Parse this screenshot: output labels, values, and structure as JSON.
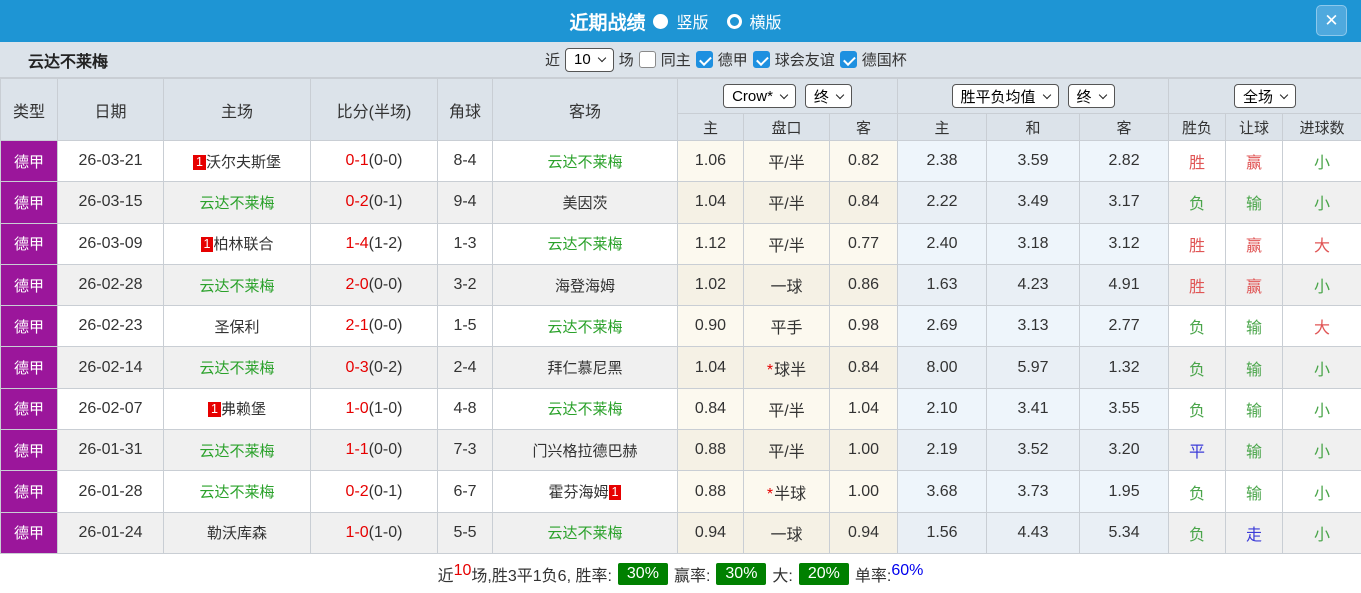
{
  "colors": {
    "red": "#E05555",
    "green": "#4AA54A",
    "blue": "#3B3BD8",
    "team_green": "#2AA12A",
    "score_red": "#E60000",
    "league_purple": "#9B169B",
    "titlebar_blue": "#1E95D4",
    "badge_green": "#008000"
  },
  "titlebar": {
    "title": "近期战绩",
    "vertical_label": "竖版",
    "vertical_selected": true,
    "horizontal_label": "横版",
    "horizontal_selected": false,
    "close_glyph": "✕"
  },
  "filterbar": {
    "team": "云达不莱梅",
    "recent_label": "近",
    "recent_value": "10",
    "matches_label": "场",
    "same_home": {
      "label": "同主",
      "checked": false
    },
    "leagues": [
      {
        "label": "德甲",
        "checked": true
      },
      {
        "label": "球会友谊",
        "checked": true
      },
      {
        "label": "德国杯",
        "checked": true
      }
    ]
  },
  "table": {
    "col_headers": [
      "类型",
      "日期",
      "主场",
      "比分(半场)",
      "角球",
      "客场"
    ],
    "sub_headers": [
      "主",
      "盘口",
      "客",
      "主",
      "和",
      "客",
      "胜负",
      "让球",
      "进球数"
    ],
    "dropdowns": {
      "company": "Crow*",
      "company_time": "终",
      "europe": "胜平负均值",
      "europe_time": "终",
      "scope": "全场"
    },
    "rows": [
      {
        "league": "德甲",
        "date": "26-03-21",
        "home": {
          "name": "沃尔夫斯堡",
          "green": false,
          "badge": "1",
          "badge_pos": "before"
        },
        "score_ft": "0-1",
        "score_ht": "(0-0)",
        "corners": "8-4",
        "away": {
          "name": "云达不莱梅",
          "green": true
        },
        "ah": {
          "home": "1.06",
          "line": "平/半",
          "star": false,
          "away": "0.82"
        },
        "odds": {
          "home": "2.38",
          "draw": "3.59",
          "away": "2.82"
        },
        "result": {
          "text": "胜",
          "color": "red"
        },
        "handicap_result": {
          "text": "赢",
          "color": "red"
        },
        "goals": {
          "text": "小",
          "color": "green"
        }
      },
      {
        "league": "德甲",
        "date": "26-03-15",
        "home": {
          "name": "云达不莱梅",
          "green": true
        },
        "score_ft": "0-2",
        "score_ht": "(0-1)",
        "corners": "9-4",
        "away": {
          "name": "美因茨",
          "green": false
        },
        "ah": {
          "home": "1.04",
          "line": "平/半",
          "star": false,
          "away": "0.84"
        },
        "odds": {
          "home": "2.22",
          "draw": "3.49",
          "away": "3.17"
        },
        "result": {
          "text": "负",
          "color": "green"
        },
        "handicap_result": {
          "text": "输",
          "color": "green"
        },
        "goals": {
          "text": "小",
          "color": "green"
        }
      },
      {
        "league": "德甲",
        "date": "26-03-09",
        "home": {
          "name": "柏林联合",
          "green": false,
          "badge": "1",
          "badge_pos": "before"
        },
        "score_ft": "1-4",
        "score_ht": "(1-2)",
        "corners": "1-3",
        "away": {
          "name": "云达不莱梅",
          "green": true
        },
        "ah": {
          "home": "1.12",
          "line": "平/半",
          "star": false,
          "away": "0.77"
        },
        "odds": {
          "home": "2.40",
          "draw": "3.18",
          "away": "3.12"
        },
        "result": {
          "text": "胜",
          "color": "red"
        },
        "handicap_result": {
          "text": "赢",
          "color": "red"
        },
        "goals": {
          "text": "大",
          "color": "red"
        }
      },
      {
        "league": "德甲",
        "date": "26-02-28",
        "home": {
          "name": "云达不莱梅",
          "green": true
        },
        "score_ft": "2-0",
        "score_ht": "(0-0)",
        "corners": "3-2",
        "away": {
          "name": "海登海姆",
          "green": false
        },
        "ah": {
          "home": "1.02",
          "line": "一球",
          "star": false,
          "away": "0.86"
        },
        "odds": {
          "home": "1.63",
          "draw": "4.23",
          "away": "4.91"
        },
        "result": {
          "text": "胜",
          "color": "red"
        },
        "handicap_result": {
          "text": "赢",
          "color": "red"
        },
        "goals": {
          "text": "小",
          "color": "green"
        }
      },
      {
        "league": "德甲",
        "date": "26-02-23",
        "home": {
          "name": "圣保利",
          "green": false
        },
        "score_ft": "2-1",
        "score_ht": "(0-0)",
        "corners": "1-5",
        "away": {
          "name": "云达不莱梅",
          "green": true
        },
        "ah": {
          "home": "0.90",
          "line": "平手",
          "star": false,
          "away": "0.98"
        },
        "odds": {
          "home": "2.69",
          "draw": "3.13",
          "away": "2.77"
        },
        "result": {
          "text": "负",
          "color": "green"
        },
        "handicap_result": {
          "text": "输",
          "color": "green"
        },
        "goals": {
          "text": "大",
          "color": "red"
        }
      },
      {
        "league": "德甲",
        "date": "26-02-14",
        "home": {
          "name": "云达不莱梅",
          "green": true
        },
        "score_ft": "0-3",
        "score_ht": "(0-2)",
        "corners": "2-4",
        "away": {
          "name": "拜仁慕尼黑",
          "green": false
        },
        "ah": {
          "home": "1.04",
          "line": "球半",
          "star": true,
          "away": "0.84"
        },
        "odds": {
          "home": "8.00",
          "draw": "5.97",
          "away": "1.32"
        },
        "result": {
          "text": "负",
          "color": "green"
        },
        "handicap_result": {
          "text": "输",
          "color": "green"
        },
        "goals": {
          "text": "小",
          "color": "green"
        }
      },
      {
        "league": "德甲",
        "date": "26-02-07",
        "home": {
          "name": "弗赖堡",
          "green": false,
          "badge": "1",
          "badge_pos": "before"
        },
        "score_ft": "1-0",
        "score_ht": "(1-0)",
        "corners": "4-8",
        "away": {
          "name": "云达不莱梅",
          "green": true
        },
        "ah": {
          "home": "0.84",
          "line": "平/半",
          "star": false,
          "away": "1.04"
        },
        "odds": {
          "home": "2.10",
          "draw": "3.41",
          "away": "3.55"
        },
        "result": {
          "text": "负",
          "color": "green"
        },
        "handicap_result": {
          "text": "输",
          "color": "green"
        },
        "goals": {
          "text": "小",
          "color": "green"
        }
      },
      {
        "league": "德甲",
        "date": "26-01-31",
        "home": {
          "name": "云达不莱梅",
          "green": true
        },
        "score_ft": "1-1",
        "score_ht": "(0-0)",
        "corners": "7-3",
        "away": {
          "name": "门兴格拉德巴赫",
          "green": false
        },
        "ah": {
          "home": "0.88",
          "line": "平/半",
          "star": false,
          "away": "1.00"
        },
        "odds": {
          "home": "2.19",
          "draw": "3.52",
          "away": "3.20"
        },
        "result": {
          "text": "平",
          "color": "blue"
        },
        "handicap_result": {
          "text": "输",
          "color": "green"
        },
        "goals": {
          "text": "小",
          "color": "green"
        }
      },
      {
        "league": "德甲",
        "date": "26-01-28",
        "home": {
          "name": "云达不莱梅",
          "green": true
        },
        "score_ft": "0-2",
        "score_ht": "(0-1)",
        "corners": "6-7",
        "away": {
          "name": "霍芬海姆",
          "green": false,
          "badge": "1",
          "badge_pos": "after"
        },
        "ah": {
          "home": "0.88",
          "line": "半球",
          "star": true,
          "away": "1.00"
        },
        "odds": {
          "home": "3.68",
          "draw": "3.73",
          "away": "1.95"
        },
        "result": {
          "text": "负",
          "color": "green"
        },
        "handicap_result": {
          "text": "输",
          "color": "green"
        },
        "goals": {
          "text": "小",
          "color": "green"
        }
      },
      {
        "league": "德甲",
        "date": "26-01-24",
        "home": {
          "name": "勒沃库森",
          "green": false
        },
        "score_ft": "1-0",
        "score_ht": "(1-0)",
        "corners": "5-5",
        "away": {
          "name": "云达不莱梅",
          "green": true
        },
        "ah": {
          "home": "0.94",
          "line": "一球",
          "star": false,
          "away": "0.94"
        },
        "odds": {
          "home": "1.56",
          "draw": "4.43",
          "away": "5.34"
        },
        "result": {
          "text": "负",
          "color": "green"
        },
        "handicap_result": {
          "text": "走",
          "color": "blue"
        },
        "goals": {
          "text": "小",
          "color": "green"
        }
      }
    ]
  },
  "footer": {
    "recent_label": "近",
    "recent_count": "10",
    "record_text": "场,胜3平1负6, 胜率:",
    "win_badge": "30%",
    "handicap_label": "赢率:",
    "handicap_badge": "30%",
    "big_label": "大:",
    "big_badge": "20%",
    "single_label": "单率:",
    "single_value": "60%"
  }
}
